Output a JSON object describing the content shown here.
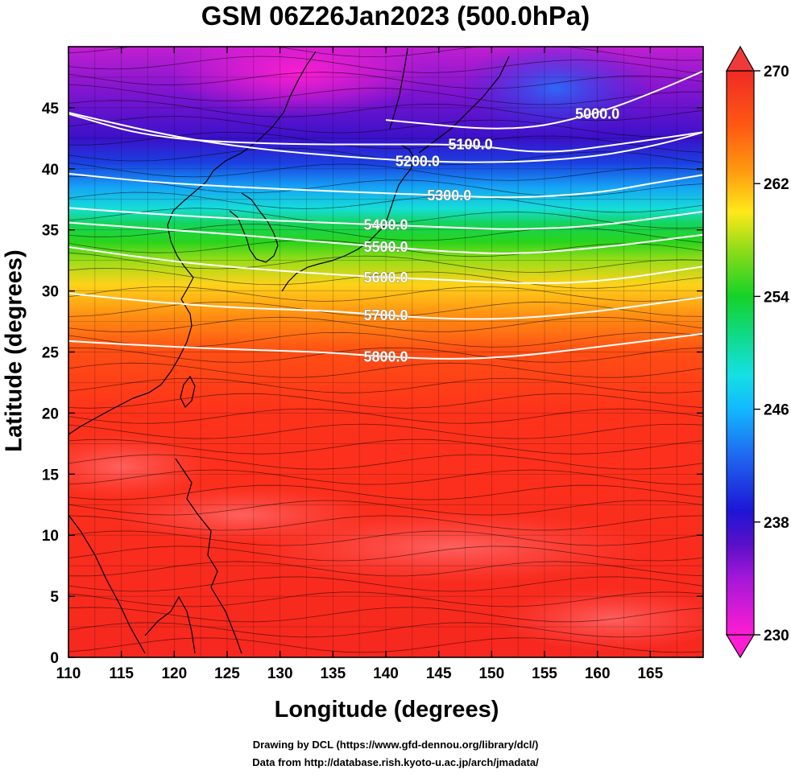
{
  "title": "GSM 06Z26Jan2023 (500.0hPa)",
  "xlabel": "Longitude (degrees)",
  "ylabel": "Latitude  (degrees)",
  "credits": {
    "line1": "Drawing by DCL (https://www.gfd-dennou.org/library/dcl/)",
    "line2": "Data from http://database.rish.kyoto-u.ac.jp/arch/jmadata/"
  },
  "chart_data": {
    "type": "heatmap",
    "xlim": [
      110,
      170
    ],
    "ylim": [
      0,
      50
    ],
    "x_ticks": [
      110,
      115,
      120,
      125,
      130,
      135,
      140,
      145,
      150,
      155,
      160,
      165
    ],
    "y_ticks": [
      0,
      5,
      10,
      15,
      20,
      25,
      30,
      35,
      40,
      45
    ],
    "colorbar": {
      "min": 230,
      "max": 270,
      "ticks": [
        230,
        238,
        246,
        254,
        262,
        270
      ],
      "colors": [
        "#ff1dd3",
        "#a417d8",
        "#5a10c8",
        "#1d15d6",
        "#1f6af0",
        "#12b8ff",
        "#15e0e4",
        "#10da8a",
        "#14d228",
        "#8cdc18",
        "#ffe81a",
        "#ff9c10",
        "#ff5a12",
        "#fd2f1c",
        "#f02a25"
      ]
    },
    "contours": [
      {
        "label": "5000.0",
        "points": [
          [
            140,
            44
          ],
          [
            152,
            43
          ],
          [
            160,
            44.5
          ],
          [
            166,
            46.5
          ],
          [
            170,
            48
          ]
        ]
      },
      {
        "label": "5100.0",
        "points": [
          [
            110,
            44.5
          ],
          [
            118,
            42.5
          ],
          [
            130,
            42
          ],
          [
            140,
            42
          ],
          [
            148,
            42
          ],
          [
            155,
            41.2
          ],
          [
            162,
            42
          ],
          [
            170,
            43
          ]
        ]
      },
      {
        "label": "5200.0",
        "points": [
          [
            110,
            44.6
          ],
          [
            120,
            42.6
          ],
          [
            128,
            41.6
          ],
          [
            136,
            41
          ],
          [
            143,
            40.6
          ],
          [
            152,
            40.5
          ],
          [
            160,
            41
          ],
          [
            166,
            42
          ],
          [
            170,
            43
          ]
        ]
      },
      {
        "label": "5300.0",
        "points": [
          [
            110,
            39.6
          ],
          [
            118,
            38.9
          ],
          [
            126,
            38.5
          ],
          [
            134,
            38.2
          ],
          [
            140,
            38
          ],
          [
            146,
            37.8
          ],
          [
            152,
            37.6
          ],
          [
            160,
            38
          ],
          [
            165,
            38.8
          ],
          [
            170,
            39.5
          ]
        ]
      },
      {
        "label": "5400.0",
        "points": [
          [
            110,
            36.8
          ],
          [
            118,
            36.3
          ],
          [
            126,
            35.9
          ],
          [
            134,
            35.6
          ],
          [
            140,
            35.4
          ],
          [
            146,
            35.2
          ],
          [
            152,
            35
          ],
          [
            160,
            35.3
          ],
          [
            170,
            36.5
          ]
        ]
      },
      {
        "label": "5500.0",
        "points": [
          [
            110,
            35.6
          ],
          [
            118,
            35.1
          ],
          [
            126,
            34.6
          ],
          [
            134,
            34
          ],
          [
            140,
            33.6
          ],
          [
            146,
            33.2
          ],
          [
            152,
            33
          ],
          [
            160,
            33.5
          ],
          [
            170,
            34.6
          ]
        ]
      },
      {
        "label": "5600.0",
        "points": [
          [
            110,
            33.6
          ],
          [
            118,
            32.6
          ],
          [
            126,
            31.9
          ],
          [
            134,
            31.4
          ],
          [
            140,
            31.1
          ],
          [
            146,
            30.9
          ],
          [
            152,
            30.6
          ],
          [
            160,
            30.7
          ],
          [
            170,
            32
          ]
        ]
      },
      {
        "label": "5700.0",
        "points": [
          [
            110,
            29.8
          ],
          [
            118,
            29.1
          ],
          [
            126,
            28.6
          ],
          [
            134,
            28.4
          ],
          [
            140,
            28
          ],
          [
            146,
            27.7
          ],
          [
            152,
            27.7
          ],
          [
            160,
            28.3
          ],
          [
            170,
            29.5
          ]
        ]
      },
      {
        "label": "5800.0",
        "points": [
          [
            110,
            25.9
          ],
          [
            118,
            25.5
          ],
          [
            126,
            25.2
          ],
          [
            134,
            25
          ],
          [
            140,
            24.6
          ],
          [
            146,
            24.4
          ],
          [
            152,
            24.6
          ],
          [
            160,
            25.4
          ],
          [
            170,
            26.5
          ]
        ]
      }
    ]
  }
}
